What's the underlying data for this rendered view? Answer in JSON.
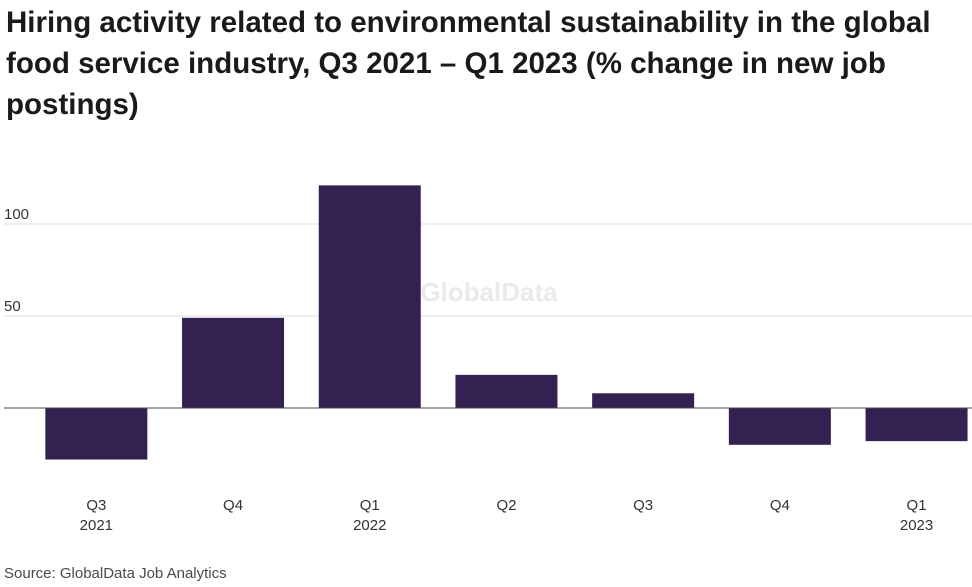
{
  "chart_data": {
    "type": "bar",
    "title": "Hiring activity related to environmental sustainability in the global food service industry, Q3 2021 – Q1 2023 (% change in new job postings)",
    "categories": [
      [
        "Q3",
        "2021"
      ],
      [
        "Q4"
      ],
      [
        "Q1",
        "2022"
      ],
      [
        "Q2"
      ],
      [
        "Q3"
      ],
      [
        "Q4"
      ],
      [
        "Q1",
        "2023"
      ]
    ],
    "values": [
      -28,
      49,
      121,
      18,
      8,
      -20,
      -18
    ],
    "yticks": [
      50,
      100
    ],
    "ylim": [
      -40,
      125
    ],
    "grid": true,
    "bar_color": "#332151",
    "watermark": "GlobalData",
    "source": "Source: GlobalData Job Analytics"
  }
}
